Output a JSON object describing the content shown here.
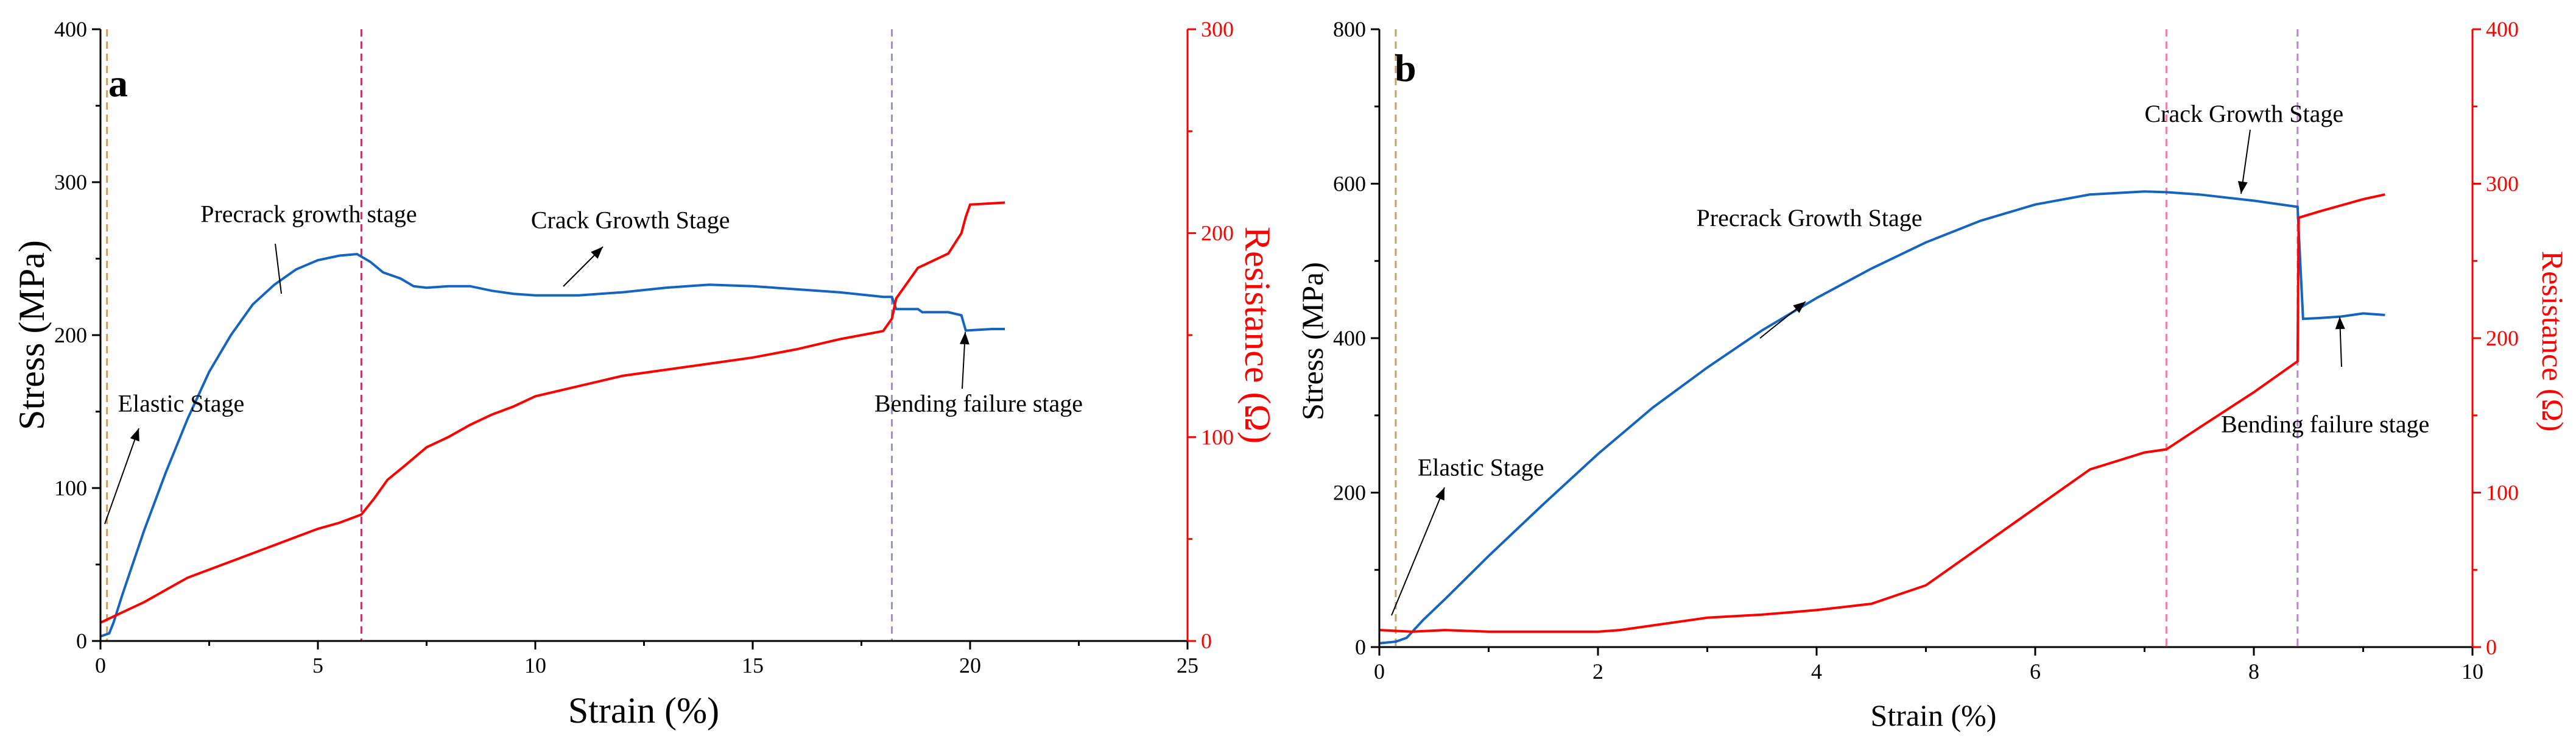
{
  "chart_data": [
    {
      "type": "line",
      "panel": "a",
      "xlabel": "Strain (%)",
      "ylabel": "Stress (MPa)",
      "y2label": "Resistance (Ω)",
      "xlim": [
        0,
        25
      ],
      "ylim": [
        0,
        400
      ],
      "y2lim": [
        0,
        300
      ],
      "xticks": [
        0,
        5,
        10,
        15,
        20,
        25
      ],
      "yticks": [
        0,
        100,
        200,
        300,
        400
      ],
      "y2ticks": [
        0,
        100,
        200,
        300
      ],
      "stage_lines": [
        {
          "x": 0.15,
          "color": "#c8a060"
        },
        {
          "x": 6.0,
          "color": "#c0306a"
        },
        {
          "x": 18.2,
          "color": "#9a90e0"
        }
      ],
      "series": [
        {
          "name": "Stress",
          "axis": "left",
          "color": "#1565c0",
          "x": [
            0,
            0.2,
            0.3,
            0.5,
            1,
            1.5,
            2,
            2.5,
            3,
            3.5,
            4,
            4.5,
            5,
            5.5,
            5.9,
            6.2,
            6.5,
            6.9,
            7.2,
            7.5,
            8,
            8.5,
            9,
            9.5,
            10,
            11,
            12,
            13,
            14,
            15,
            16,
            17,
            18,
            18.2,
            18.3,
            18.8,
            18.9,
            19.5,
            19.8,
            19.9,
            20.5,
            20.8
          ],
          "y": [
            3,
            5,
            12,
            30,
            72,
            110,
            145,
            176,
            200,
            220,
            233,
            243,
            249,
            252,
            253,
            248,
            241,
            237,
            232,
            231,
            232,
            232,
            229,
            227,
            226,
            226,
            228,
            231,
            233,
            232,
            230,
            228,
            225,
            225,
            217,
            217,
            215,
            215,
            213,
            203,
            204,
            204
          ]
        },
        {
          "name": "Resistance",
          "axis": "right",
          "color": "#ff0000",
          "x": [
            0,
            0.5,
            1,
            1.5,
            2,
            2.5,
            3,
            3.5,
            4,
            4.5,
            5,
            5.5,
            6,
            6.3,
            6.6,
            7,
            7.5,
            8,
            8.5,
            9,
            9.5,
            10,
            11,
            12,
            13,
            14,
            15,
            16,
            17,
            18,
            18.2,
            18.3,
            18.8,
            19,
            19.5,
            19.8,
            19.9,
            20,
            20.8
          ],
          "y": [
            9,
            14,
            19,
            25,
            31,
            35,
            39,
            43,
            47,
            51,
            55,
            58,
            62,
            70,
            79,
            86,
            95,
            100,
            106,
            111,
            115,
            120,
            125,
            130,
            133,
            136,
            139,
            143,
            148,
            152,
            158,
            168,
            183,
            185,
            190,
            200,
            208,
            214,
            215
          ]
        }
      ],
      "annotations": [
        {
          "text": "Elastic Stage",
          "x": 0.4,
          "y": 150
        },
        {
          "text": "Precrack growth stage",
          "x": 2.3,
          "y": 274
        },
        {
          "text": "Crack Growth Stage",
          "x": 9.9,
          "y": 270
        },
        {
          "text": "Bending failure stage",
          "x": 17.8,
          "y": 150
        }
      ]
    },
    {
      "type": "line",
      "panel": "b",
      "xlabel": "Strain (%)",
      "ylabel": "Stress (MPa)",
      "y2label": "Resistance (Ω)",
      "xlim": [
        0,
        10
      ],
      "ylim": [
        0,
        800
      ],
      "y2lim": [
        0,
        400
      ],
      "xticks": [
        0,
        2,
        4,
        6,
        8,
        10
      ],
      "yticks": [
        0,
        200,
        400,
        600,
        800
      ],
      "y2ticks": [
        0,
        100,
        200,
        300,
        400
      ],
      "stage_lines": [
        {
          "x": 0.15,
          "color": "#c8a060"
        },
        {
          "x": 7.2,
          "color": "#f080a0"
        },
        {
          "x": 8.4,
          "color": "#c080e0"
        }
      ],
      "series": [
        {
          "name": "Stress",
          "axis": "left",
          "color": "#1565c0",
          "x": [
            0,
            0.15,
            0.25,
            0.4,
            0.6,
            0.8,
            1,
            1.5,
            2,
            2.5,
            3,
            3.5,
            4,
            4.5,
            5,
            5.5,
            6,
            6.5,
            7,
            7.2,
            7.5,
            8,
            8.4,
            8.41,
            8.45,
            8.6,
            8.8,
            9,
            9.2
          ],
          "y": [
            5,
            7,
            12,
            35,
            62,
            90,
            118,
            185,
            250,
            310,
            362,
            410,
            452,
            490,
            524,
            552,
            573,
            586,
            590,
            589,
            586,
            578,
            570,
            540,
            425,
            426,
            428,
            432,
            430
          ]
        },
        {
          "name": "Resistance",
          "axis": "right",
          "color": "#ff0000",
          "x": [
            0,
            0.3,
            0.6,
            1,
            1.5,
            2,
            2.2,
            2.5,
            3,
            3.5,
            4,
            4.5,
            5,
            5.5,
            6,
            6.5,
            7,
            7.2,
            7.5,
            8,
            8.4,
            8.41,
            8.6,
            8.8,
            9,
            9.2
          ],
          "y": [
            11,
            10,
            11,
            10,
            10,
            10,
            11,
            14,
            19,
            21,
            24,
            28,
            40,
            65,
            90,
            115,
            126,
            128,
            142,
            165,
            185,
            278,
            282,
            286,
            290,
            293
          ]
        }
      ],
      "annotations": [
        {
          "text": "Elastic Stage",
          "x": 0.35,
          "y": 222
        },
        {
          "text": "Precrack Growth Stage",
          "x": 2.9,
          "y": 545
        },
        {
          "text": "Crack Growth Stage",
          "x": 7.0,
          "y": 680
        },
        {
          "text": "Bending failure stage",
          "x": 7.7,
          "y": 278
        }
      ]
    }
  ]
}
